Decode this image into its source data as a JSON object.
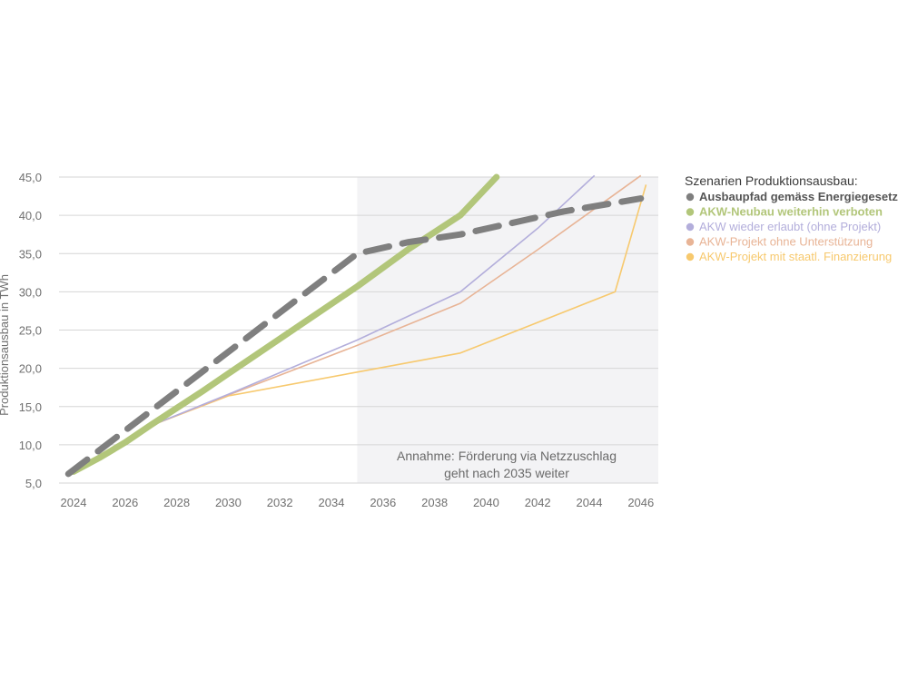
{
  "chart_data": {
    "type": "line",
    "ylabel": "Produktionsausbau in TWh",
    "xlabel": "",
    "xlim": [
      2023.5,
      2046.7
    ],
    "ylim": [
      5,
      45
    ],
    "x_ticks": [
      2024,
      2026,
      2028,
      2030,
      2032,
      2034,
      2036,
      2038,
      2040,
      2042,
      2044,
      2046
    ],
    "x_tick_labels": [
      "2024",
      "2026",
      "2028",
      "2030",
      "2032",
      "2034",
      "2036",
      "2038",
      "2040",
      "2042",
      "2044",
      "2046"
    ],
    "y_ticks": [
      5,
      10,
      15,
      20,
      25,
      30,
      35,
      40,
      45
    ],
    "y_tick_labels": [
      "5,0",
      "10,0",
      "15,0",
      "20,0",
      "25,0",
      "30,0",
      "35,0",
      "40,0",
      "45,0"
    ],
    "grid": "horizontal",
    "shaded_region": {
      "x_from": 2035,
      "x_to": 2046.7
    },
    "annotation": {
      "lines": [
        "Annahme: Förderung via Netzzuschlag",
        "geht nach 2035 weiter"
      ],
      "x": 2039,
      "y": 7.7
    },
    "legend": {
      "title": "Szenarien Produktionsausbau:",
      "position": "right"
    },
    "series": [
      {
        "name": "AKW-Projekt mit staatl. Finanzierung",
        "color": "#f7c96e",
        "style": "thin",
        "points": [
          [
            2024,
            6.5
          ],
          [
            2027,
            12.5
          ],
          [
            2030,
            16.4
          ],
          [
            2035,
            19.5
          ],
          [
            2039,
            22
          ],
          [
            2045,
            30
          ],
          [
            2046.2,
            44
          ]
        ]
      },
      {
        "name": "AKW-Projekt ohne Unterstützung",
        "color": "#e8b496",
        "style": "thin",
        "points": [
          [
            2024,
            6.5
          ],
          [
            2027,
            12.5
          ],
          [
            2030,
            16.5
          ],
          [
            2035,
            23
          ],
          [
            2039,
            28.5
          ],
          [
            2042,
            35.5
          ],
          [
            2046,
            45.2
          ]
        ]
      },
      {
        "name": "AKW wieder erlaubt (ohne Projekt)",
        "color": "#b3aedb",
        "style": "thin",
        "points": [
          [
            2024,
            6.5
          ],
          [
            2027,
            12.5
          ],
          [
            2030,
            16.6
          ],
          [
            2035,
            23.7
          ],
          [
            2039,
            30
          ],
          [
            2042,
            38.3
          ],
          [
            2044.2,
            45.2
          ]
        ]
      },
      {
        "name": "AKW-Neubau weiterhin verboten",
        "color": "#b2c67a",
        "style": "thick",
        "points": [
          [
            2024,
            6.5
          ],
          [
            2025,
            8.3
          ],
          [
            2026,
            10.3
          ],
          [
            2027,
            12.6
          ],
          [
            2028,
            14.8
          ],
          [
            2029,
            17
          ],
          [
            2030,
            19.3
          ],
          [
            2035,
            30.7
          ],
          [
            2037,
            35.6
          ],
          [
            2039,
            40
          ],
          [
            2040.4,
            45
          ]
        ]
      },
      {
        "name": "Ausbaupfad gemäss Energiegesetz",
        "color": "#7f7f7f",
        "style": "dashed",
        "points": [
          [
            2023.8,
            6.2
          ],
          [
            2035,
            35
          ],
          [
            2037,
            36.5
          ],
          [
            2039,
            37.5
          ],
          [
            2041,
            39
          ],
          [
            2043,
            40.5
          ],
          [
            2046,
            42.2
          ]
        ]
      }
    ]
  }
}
